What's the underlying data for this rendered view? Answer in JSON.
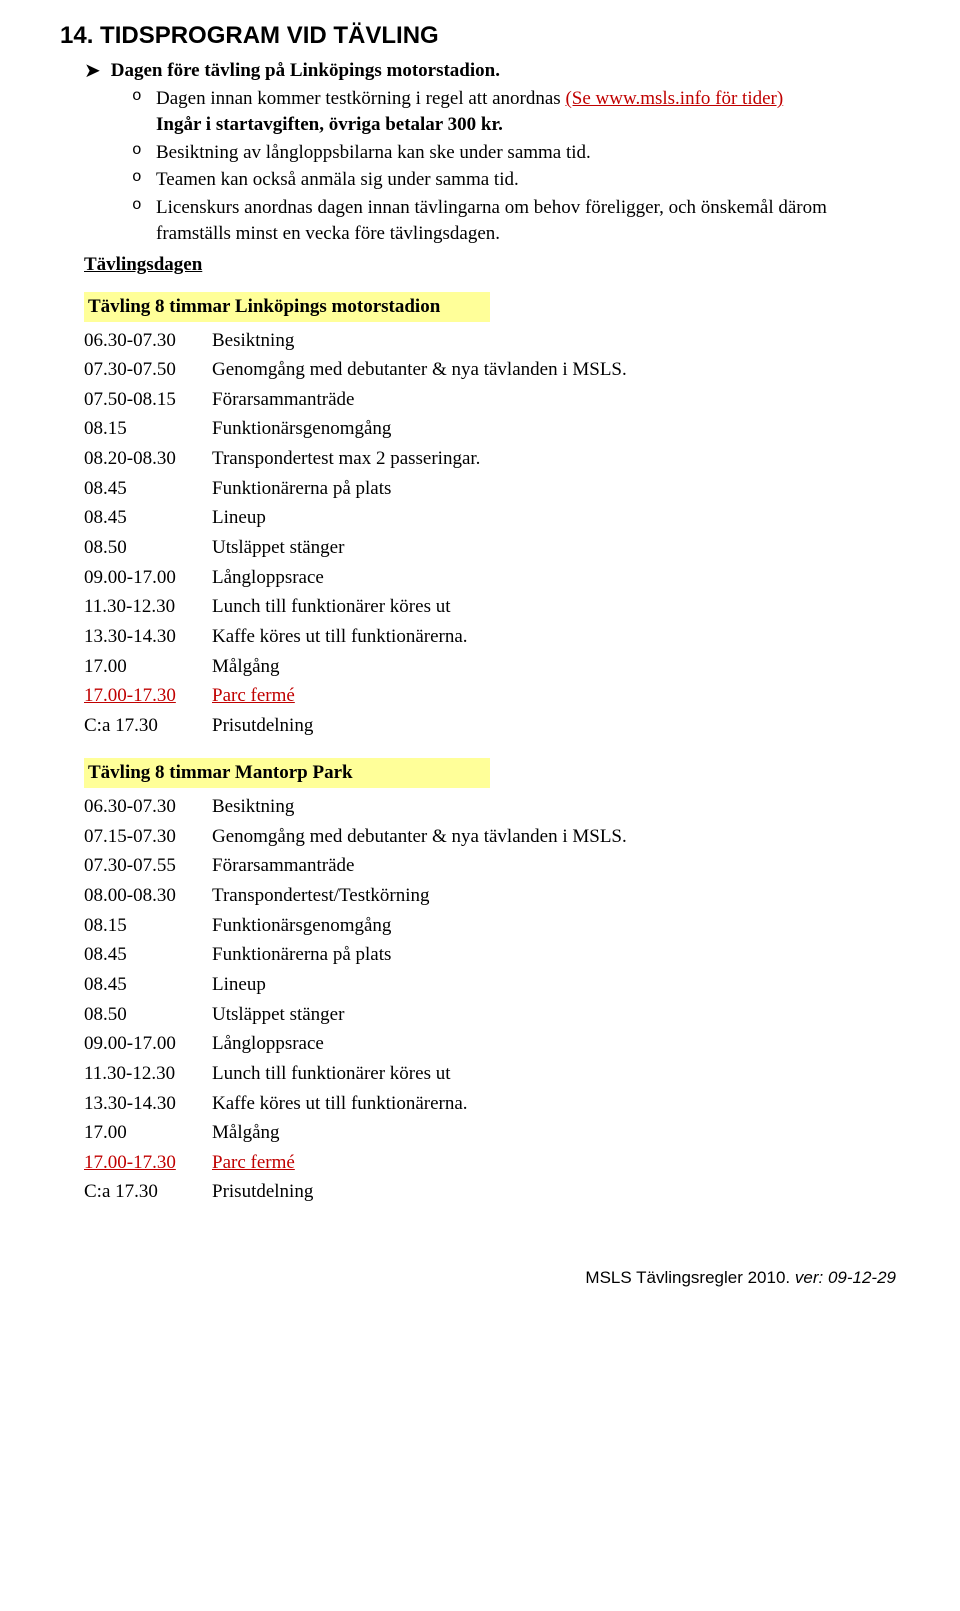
{
  "section_number": "14.",
  "section_title": "TIDSPROGRAM VID TÄVLING",
  "arrow_text": "Dagen före tävling på Linköpings motorstadion.",
  "bullets": {
    "b1_pre": "Dagen innan kommer testkörning i regel att anordnas ",
    "b1_link": "(Se www.msls.info för tider)",
    "b1_post_line": "Ingår i startavgiften, övriga betalar 300 kr.",
    "b2": "Besiktning av långloppsbilarna kan ske under samma tid.",
    "b3": "Teamen kan också anmäla sig under samma tid.",
    "b4": "Licenskurs anordnas dagen innan tävlingarna om behov föreligger, och önskemål därom framställs minst en vecka före tävlingsdagen."
  },
  "tavlingsdagen_label": "Tävlingsdagen",
  "table1_title": "Tävling 8 timmar Linköpings motorstadion",
  "table1": [
    {
      "t": "06.30-07.30",
      "d": "Besiktning"
    },
    {
      "t": "07.30-07.50",
      "d": "Genomgång med debutanter & nya tävlanden i MSLS."
    },
    {
      "t": "07.50-08.15",
      "d": "Förarsammanträde"
    },
    {
      "t": "08.15",
      "d": "Funktionärsgenomgång"
    },
    {
      "t": "08.20-08.30",
      "d": "Transpondertest max 2 passeringar."
    },
    {
      "t": "08.45",
      "d": "Funktionärerna på plats"
    },
    {
      "t": "08.45",
      "d": "Lineup"
    },
    {
      "t": "08.50",
      "d": "Utsläppet stänger"
    },
    {
      "t": "09.00-17.00",
      "d": "Långloppsrace"
    },
    {
      "t": "11.30-12.30",
      "d": "Lunch till funktionärer köres ut"
    },
    {
      "t": "13.30-14.30",
      "d": "Kaffe köres ut till funktionärerna."
    },
    {
      "t": "17.00",
      "d": "Målgång"
    },
    {
      "t": "17.00-17.30",
      "d": "Parc fermé",
      "red": true
    },
    {
      "t": "C:a 17.30",
      "d": "Prisutdelning"
    }
  ],
  "table2_title": "Tävling 8 timmar Mantorp Park",
  "table2": [
    {
      "t": "06.30-07.30",
      "d": "Besiktning"
    },
    {
      "t": "07.15-07.30",
      "d": "Genomgång med debutanter & nya tävlanden i MSLS."
    },
    {
      "t": "07.30-07.55",
      "d": "Förarsammanträde"
    },
    {
      "t": "08.00-08.30",
      "d": "Transpondertest/Testkörning"
    },
    {
      "t": "08.15",
      "d": "Funktionärsgenomgång"
    },
    {
      "t": "08.45",
      "d": "Funktionärerna på plats"
    },
    {
      "t": "08.45",
      "d": "Lineup"
    },
    {
      "t": "08.50",
      "d": "Utsläppet stänger"
    },
    {
      "t": "09.00-17.00",
      "d": "Långloppsrace"
    },
    {
      "t": "11.30-12.30",
      "d": "Lunch till funktionärer köres ut"
    },
    {
      "t": "13.30-14.30",
      "d": "Kaffe köres ut till funktionärerna."
    },
    {
      "t": "17.00",
      "d": "Målgång"
    },
    {
      "t": "17.00-17.30",
      "d": "Parc fermé",
      "red": true
    },
    {
      "t": "C:a 17.30",
      "d": "Prisutdelning"
    }
  ],
  "footer_main": "MSLS Tävlingsregler 2010.",
  "footer_ver": " ver: 09-12-29"
}
